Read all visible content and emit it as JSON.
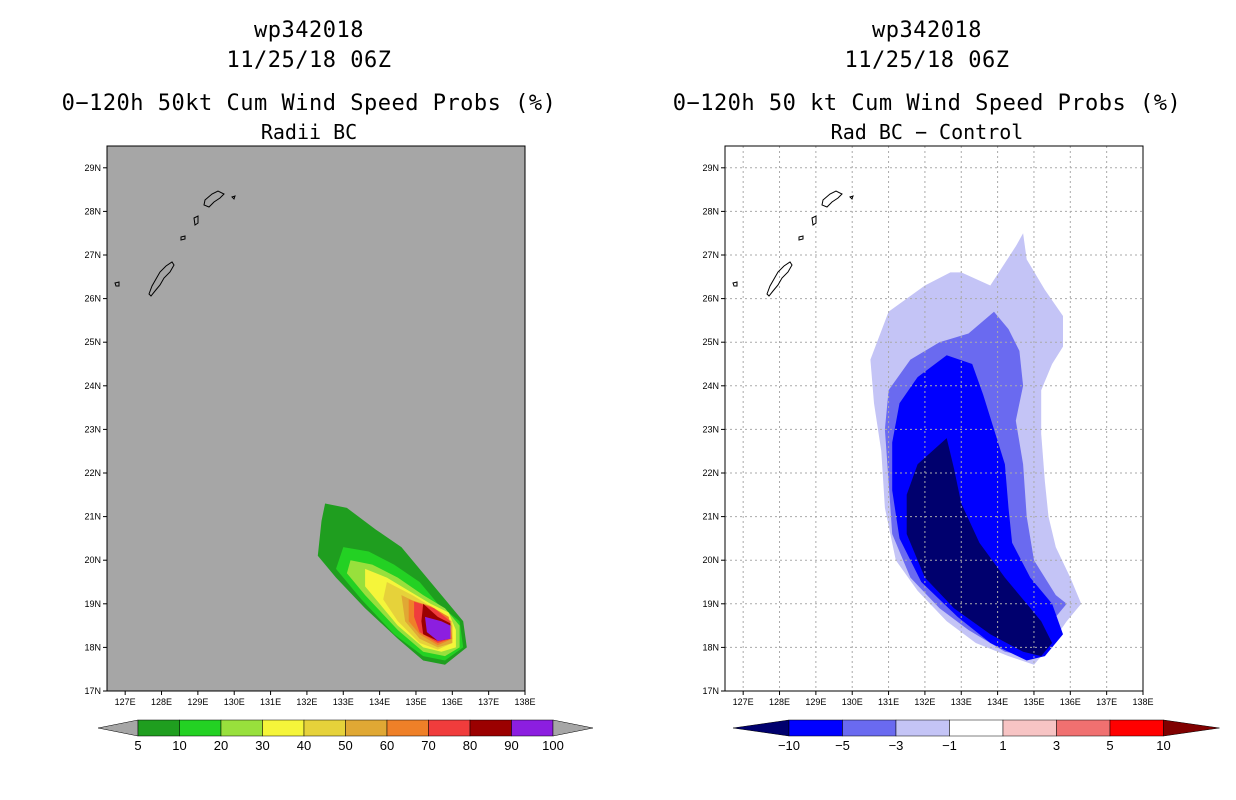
{
  "panels": [
    {
      "title1": "wp342018",
      "title2": "11/25/18 06Z",
      "title3": "0−120h 50kt Cum Wind Speed Probs (%)",
      "title4": "Radii BC"
    },
    {
      "title1": "wp342018",
      "title2": "11/25/18 06Z",
      "title3": "0−120h 50 kt Cum Wind Speed Probs (%)",
      "title4": "Rad BC − Control"
    }
  ],
  "chart_data": [
    {
      "type": "contour-map",
      "title": "wp342018 11/25/18 06Z 0−120h 50kt Cum Wind Speed Probs (%) Radii BC",
      "x_unit": "longitude (deg E)",
      "y_unit": "latitude (deg N)",
      "xlim": [
        126.5,
        138.0
      ],
      "ylim": [
        17.0,
        29.5
      ],
      "x_ticks": [
        127,
        128,
        129,
        130,
        131,
        132,
        133,
        134,
        135,
        136,
        137,
        138
      ],
      "x_tick_labels": [
        "127E",
        "128E",
        "129E",
        "130E",
        "131E",
        "132E",
        "133E",
        "134E",
        "135E",
        "136E",
        "137E",
        "138E"
      ],
      "y_ticks": [
        17,
        18,
        19,
        20,
        21,
        22,
        23,
        24,
        25,
        26,
        27,
        28,
        29
      ],
      "y_tick_labels": [
        "17N",
        "18N",
        "19N",
        "20N",
        "21N",
        "22N",
        "23N",
        "24N",
        "25N",
        "26N",
        "27N",
        "28N",
        "29N"
      ],
      "grid": false,
      "background": "#a6a6a6",
      "colorbar": {
        "ticks": [
          "5",
          "10",
          "20",
          "30",
          "40",
          "50",
          "60",
          "70",
          "80",
          "90",
          "100"
        ],
        "colors": [
          "#1f9e1f",
          "#23d123",
          "#98e03c",
          "#f5f53a",
          "#e6d23a",
          "#e0a834",
          "#ef8028",
          "#f03c3c",
          "#9b0000",
          "#8c1ee0"
        ],
        "under_color": "#a6a6a6",
        "over_color": "#a6a6a6"
      },
      "contours": [
        {
          "level": 5,
          "color": "#1f9e1f",
          "points": [
            [
              132.5,
              21.3
            ],
            [
              133.1,
              21.2
            ],
            [
              133.9,
              20.7
            ],
            [
              134.6,
              20.3
            ],
            [
              135.2,
              19.7
            ],
            [
              135.8,
              19.1
            ],
            [
              136.3,
              18.6
            ],
            [
              136.4,
              18.0
            ],
            [
              135.8,
              17.6
            ],
            [
              135.2,
              17.7
            ],
            [
              134.5,
              18.2
            ],
            [
              133.6,
              18.9
            ],
            [
              132.8,
              19.6
            ],
            [
              132.3,
              20.1
            ],
            [
              132.4,
              20.9
            ]
          ]
        },
        {
          "level": 10,
          "color": "#23d123",
          "points": [
            [
              133.0,
              20.3
            ],
            [
              133.7,
              20.2
            ],
            [
              134.4,
              19.9
            ],
            [
              135.1,
              19.5
            ],
            [
              135.6,
              19.0
            ],
            [
              136.2,
              18.6
            ],
            [
              136.3,
              18.0
            ],
            [
              135.8,
              17.7
            ],
            [
              135.2,
              17.8
            ],
            [
              134.4,
              18.3
            ],
            [
              133.5,
              19.1
            ],
            [
              132.8,
              19.8
            ]
          ]
        },
        {
          "level": 20,
          "color": "#98e03c",
          "points": [
            [
              133.2,
              20.0
            ],
            [
              133.8,
              19.9
            ],
            [
              134.5,
              19.6
            ],
            [
              135.2,
              19.2
            ],
            [
              135.8,
              18.9
            ],
            [
              136.2,
              18.5
            ],
            [
              136.2,
              18.0
            ],
            [
              135.8,
              17.8
            ],
            [
              135.2,
              17.9
            ],
            [
              134.5,
              18.4
            ],
            [
              133.6,
              19.2
            ],
            [
              133.1,
              19.7
            ]
          ]
        },
        {
          "level": 30,
          "color": "#f5f53a",
          "points": [
            [
              133.6,
              19.8
            ],
            [
              134.2,
              19.6
            ],
            [
              134.8,
              19.3
            ],
            [
              135.4,
              19.0
            ],
            [
              135.9,
              18.8
            ],
            [
              136.1,
              18.4
            ],
            [
              136.1,
              18.0
            ],
            [
              135.7,
              17.9
            ],
            [
              135.2,
              18.0
            ],
            [
              134.5,
              18.5
            ],
            [
              134.0,
              19.0
            ],
            [
              133.6,
              19.4
            ]
          ]
        },
        {
          "level": 40,
          "color": "#e6d23a",
          "points": [
            [
              134.2,
              19.5
            ],
            [
              134.9,
              19.2
            ],
            [
              135.5,
              18.9
            ],
            [
              136.0,
              18.6
            ],
            [
              136.0,
              18.1
            ],
            [
              135.6,
              17.95
            ],
            [
              135.1,
              18.1
            ],
            [
              134.5,
              18.6
            ],
            [
              134.1,
              19.1
            ]
          ]
        },
        {
          "level": 50,
          "color": "#e0a834",
          "points": [
            [
              134.6,
              19.2
            ],
            [
              135.1,
              19.0
            ],
            [
              135.6,
              18.8
            ],
            [
              136.0,
              18.5
            ],
            [
              136.0,
              18.1
            ],
            [
              135.6,
              18.0
            ],
            [
              135.1,
              18.2
            ],
            [
              134.7,
              18.6
            ]
          ]
        },
        {
          "level": 60,
          "color": "#ef8028",
          "points": [
            [
              134.8,
              19.1
            ],
            [
              135.4,
              18.95
            ],
            [
              135.9,
              18.7
            ],
            [
              136.0,
              18.2
            ],
            [
              135.6,
              18.05
            ],
            [
              135.1,
              18.3
            ],
            [
              134.8,
              18.6
            ]
          ]
        },
        {
          "level": 70,
          "color": "#f03c3c",
          "points": [
            [
              134.95,
              19.05
            ],
            [
              135.5,
              18.9
            ],
            [
              135.95,
              18.6
            ],
            [
              135.95,
              18.2
            ],
            [
              135.6,
              18.1
            ],
            [
              135.1,
              18.35
            ],
            [
              134.95,
              18.7
            ]
          ]
        },
        {
          "level": 80,
          "color": "#9b0000",
          "points": [
            [
              135.2,
              19.0
            ],
            [
              135.6,
              18.7
            ],
            [
              135.95,
              18.55
            ],
            [
              135.95,
              18.2
            ],
            [
              135.6,
              18.15
            ],
            [
              135.2,
              18.3
            ],
            [
              135.15,
              18.6
            ]
          ]
        },
        {
          "level": 90,
          "color": "#8c1ee0",
          "points": [
            [
              135.25,
              18.7
            ],
            [
              135.7,
              18.6
            ],
            [
              135.95,
              18.5
            ],
            [
              135.95,
              18.2
            ],
            [
              135.6,
              18.15
            ],
            [
              135.3,
              18.35
            ]
          ]
        }
      ]
    },
    {
      "type": "contour-map",
      "title": "wp342018 11/25/18 06Z 0−120h 50 kt Cum Wind Speed Probs (%) Rad BC − Control",
      "x_unit": "longitude (deg E)",
      "y_unit": "latitude (deg N)",
      "xlim": [
        126.5,
        138.0
      ],
      "ylim": [
        17.0,
        29.5
      ],
      "x_ticks": [
        127,
        128,
        129,
        130,
        131,
        132,
        133,
        134,
        135,
        136,
        137,
        138
      ],
      "x_tick_labels": [
        "127E",
        "128E",
        "129E",
        "130E",
        "131E",
        "132E",
        "133E",
        "134E",
        "135E",
        "136E",
        "137E",
        "138E"
      ],
      "y_ticks": [
        17,
        18,
        19,
        20,
        21,
        22,
        23,
        24,
        25,
        26,
        27,
        28,
        29
      ],
      "y_tick_labels": [
        "17N",
        "18N",
        "19N",
        "20N",
        "21N",
        "22N",
        "23N",
        "24N",
        "25N",
        "26N",
        "27N",
        "28N",
        "29N"
      ],
      "grid": true,
      "background": "#ffffff",
      "colorbar": {
        "ticks": [
          "−10",
          "−5",
          "−3",
          "−1",
          "1",
          "3",
          "5",
          "10"
        ],
        "colors": [
          "#0000ff",
          "#6a6af0",
          "#c4c4f6",
          "#ffffff",
          "#f7c4c4",
          "#f07070",
          "#ff0000"
        ],
        "under_color": "#00006e",
        "over_color": "#800000"
      },
      "contours": [
        {
          "level": -1,
          "color": "#c4c4f6",
          "points": [
            [
              133.0,
              26.6
            ],
            [
              133.8,
              26.3
            ],
            [
              134.5,
              27.2
            ],
            [
              134.7,
              27.5
            ],
            [
              134.8,
              26.9
            ],
            [
              135.3,
              26.2
            ],
            [
              135.8,
              25.6
            ],
            [
              135.8,
              24.9
            ],
            [
              135.5,
              24.5
            ],
            [
              135.2,
              23.9
            ],
            [
              135.2,
              22.9
            ],
            [
              135.3,
              21.8
            ],
            [
              135.4,
              21.0
            ],
            [
              135.6,
              20.3
            ],
            [
              136.0,
              19.6
            ],
            [
              136.3,
              19.0
            ],
            [
              135.9,
              18.6
            ],
            [
              135.4,
              18.0
            ],
            [
              135.0,
              17.6
            ],
            [
              134.3,
              17.8
            ],
            [
              133.4,
              18.1
            ],
            [
              132.6,
              18.6
            ],
            [
              131.8,
              19.3
            ],
            [
              131.2,
              20.0
            ],
            [
              130.9,
              21.2
            ],
            [
              130.8,
              22.5
            ],
            [
              130.6,
              23.6
            ],
            [
              130.5,
              24.6
            ],
            [
              131.0,
              25.7
            ],
            [
              132.0,
              26.3
            ],
            [
              132.7,
              26.6
            ]
          ]
        },
        {
          "level": -3,
          "color": "#6a6af0",
          "points": [
            [
              133.2,
              25.2
            ],
            [
              133.9,
              25.7
            ],
            [
              134.3,
              25.3
            ],
            [
              134.6,
              24.8
            ],
            [
              134.7,
              24.0
            ],
            [
              134.5,
              23.2
            ],
            [
              134.7,
              22.2
            ],
            [
              134.8,
              21.0
            ],
            [
              135.0,
              20.0
            ],
            [
              135.6,
              19.2
            ],
            [
              135.9,
              19.0
            ],
            [
              135.6,
              18.7
            ],
            [
              135.2,
              18.1
            ],
            [
              134.8,
              17.8
            ],
            [
              134.2,
              17.9
            ],
            [
              133.2,
              18.4
            ],
            [
              132.4,
              18.9
            ],
            [
              131.6,
              19.6
            ],
            [
              131.1,
              20.6
            ],
            [
              131.0,
              21.8
            ],
            [
              130.9,
              23.0
            ],
            [
              131.0,
              23.9
            ],
            [
              131.6,
              24.6
            ],
            [
              132.4,
              25.0
            ]
          ]
        },
        {
          "level": -5,
          "color": "#0000ff",
          "points": [
            [
              132.6,
              24.7
            ],
            [
              133.3,
              24.5
            ],
            [
              133.6,
              23.8
            ],
            [
              133.9,
              23.0
            ],
            [
              134.2,
              22.2
            ],
            [
              134.3,
              21.2
            ],
            [
              134.4,
              20.4
            ],
            [
              134.9,
              19.6
            ],
            [
              135.5,
              19.0
            ],
            [
              135.8,
              18.3
            ],
            [
              135.3,
              17.8
            ],
            [
              134.8,
              17.7
            ],
            [
              133.8,
              18.1
            ],
            [
              132.9,
              18.7
            ],
            [
              131.9,
              19.5
            ],
            [
              131.3,
              20.5
            ],
            [
              131.1,
              21.6
            ],
            [
              131.1,
              22.7
            ],
            [
              131.3,
              23.6
            ],
            [
              131.8,
              24.2
            ]
          ]
        },
        {
          "level": -10,
          "color": "#00006e",
          "points": [
            [
              132.6,
              22.8
            ],
            [
              132.8,
              22.1
            ],
            [
              133.0,
              21.3
            ],
            [
              133.5,
              20.4
            ],
            [
              134.2,
              19.6
            ],
            [
              134.8,
              19.0
            ],
            [
              135.2,
              18.6
            ],
            [
              135.5,
              18.1
            ],
            [
              135.2,
              17.8
            ],
            [
              134.7,
              17.9
            ],
            [
              133.8,
              18.3
            ],
            [
              132.8,
              18.9
            ],
            [
              132.0,
              19.6
            ],
            [
              131.5,
              20.6
            ],
            [
              131.5,
              21.5
            ],
            [
              131.8,
              22.2
            ]
          ]
        }
      ]
    }
  ]
}
